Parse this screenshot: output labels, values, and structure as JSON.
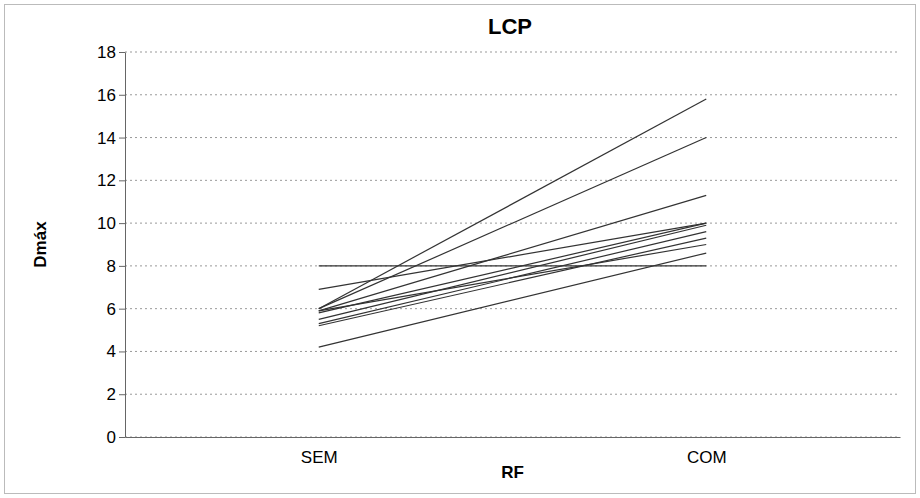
{
  "chart_data": {
    "type": "line",
    "title": "LCP",
    "x_label": "RF",
    "y_label": "Dmáx",
    "categories": [
      "SEM",
      "COM"
    ],
    "color": "#333333",
    "series": [
      {
        "values": [
          6.0,
          15.8
        ]
      },
      {
        "values": [
          6.0,
          14.0
        ]
      },
      {
        "values": [
          5.9,
          11.3
        ]
      },
      {
        "values": [
          8.0,
          8.0
        ]
      },
      {
        "values": [
          6.9,
          10.0
        ]
      },
      {
        "values": [
          5.8,
          10.0
        ]
      },
      {
        "values": [
          5.5,
          9.9
        ]
      },
      {
        "values": [
          5.3,
          9.6
        ]
      },
      {
        "values": [
          5.2,
          9.3
        ]
      },
      {
        "values": [
          5.9,
          9.0
        ]
      },
      {
        "values": [
          4.2,
          8.6
        ]
      }
    ],
    "ylim": [
      0,
      18
    ],
    "yticks": [
      0,
      2,
      4,
      6,
      8,
      10,
      12,
      14,
      16,
      18
    ],
    "grid": true
  }
}
